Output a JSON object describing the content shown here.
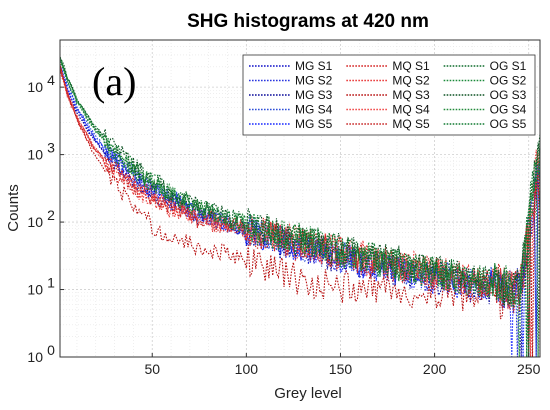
{
  "chart_data": {
    "type": "line",
    "title": "SHG histograms at 420 nm",
    "panel_label": "(a)",
    "xlabel": "Grey level",
    "ylabel": "Counts",
    "xlim": [
      1,
      256
    ],
    "ylim": [
      1,
      50000
    ],
    "yscale": "log",
    "grid": true,
    "minor_grid": true,
    "legend_position": "top-right",
    "legend_columns": 3,
    "xticks": [
      50,
      100,
      150,
      200,
      250
    ],
    "xtick_labels": [
      "50",
      "100",
      "150",
      "200",
      "250"
    ],
    "yticks": [
      1,
      10,
      100,
      1000,
      10000
    ],
    "ytick_labels": [
      "10^0",
      "10^1",
      "10^2",
      "10^3",
      "10^4"
    ],
    "series": [
      {
        "name": "MG S1",
        "color": "#1010c8",
        "style": "dotted",
        "anchors": [
          [
            1,
            20000
          ],
          [
            5,
            9000
          ],
          [
            10,
            4500
          ],
          [
            15,
            2600
          ],
          [
            20,
            1600
          ],
          [
            30,
            800
          ],
          [
            40,
            450
          ],
          [
            50,
            290
          ],
          [
            60,
            200
          ],
          [
            75,
            130
          ],
          [
            100,
            75
          ],
          [
            125,
            45
          ],
          [
            150,
            30
          ],
          [
            175,
            20
          ],
          [
            200,
            15
          ],
          [
            225,
            11
          ],
          [
            245,
            10
          ],
          [
            255,
            400
          ]
        ]
      },
      {
        "name": "MG S2",
        "color": "#2a36e0",
        "style": "dotted",
        "anchors": [
          [
            1,
            22000
          ],
          [
            5,
            10000
          ],
          [
            10,
            5000
          ],
          [
            15,
            2800
          ],
          [
            20,
            1700
          ],
          [
            30,
            850
          ],
          [
            40,
            480
          ],
          [
            50,
            300
          ],
          [
            60,
            210
          ],
          [
            75,
            135
          ],
          [
            100,
            78
          ],
          [
            125,
            47
          ],
          [
            150,
            31
          ],
          [
            175,
            21
          ],
          [
            200,
            15
          ],
          [
            225,
            11
          ],
          [
            245,
            9
          ],
          [
            255,
            600
          ]
        ]
      },
      {
        "name": "MG S3",
        "color": "#0b0b9a",
        "style": "dotted",
        "anchors": [
          [
            1,
            18000
          ],
          [
            5,
            8500
          ],
          [
            10,
            4200
          ],
          [
            15,
            2400
          ],
          [
            20,
            1500
          ],
          [
            30,
            750
          ],
          [
            40,
            420
          ],
          [
            50,
            270
          ],
          [
            60,
            190
          ],
          [
            75,
            120
          ],
          [
            100,
            70
          ],
          [
            125,
            43
          ],
          [
            150,
            28
          ],
          [
            175,
            19
          ],
          [
            200,
            14
          ],
          [
            225,
            10
          ],
          [
            245,
            9
          ],
          [
            255,
            300
          ]
        ]
      },
      {
        "name": "MG S4",
        "color": "#3050d8",
        "style": "dotted",
        "anchors": [
          [
            1,
            25000
          ],
          [
            5,
            11000
          ],
          [
            10,
            5200
          ],
          [
            15,
            3000
          ],
          [
            20,
            1800
          ],
          [
            30,
            900
          ],
          [
            40,
            500
          ],
          [
            50,
            320
          ],
          [
            60,
            220
          ],
          [
            75,
            140
          ],
          [
            100,
            80
          ],
          [
            125,
            48
          ],
          [
            150,
            32
          ],
          [
            175,
            22
          ],
          [
            200,
            16
          ],
          [
            225,
            12
          ],
          [
            245,
            10
          ],
          [
            255,
            800
          ]
        ]
      },
      {
        "name": "MG S5",
        "color": "#1a2aff",
        "style": "dotted",
        "anchors": [
          [
            1,
            20000
          ],
          [
            5,
            9500
          ],
          [
            10,
            4700
          ],
          [
            15,
            2700
          ],
          [
            20,
            1650
          ],
          [
            30,
            820
          ],
          [
            40,
            460
          ],
          [
            50,
            290
          ],
          [
            60,
            205
          ],
          [
            75,
            132
          ],
          [
            100,
            76
          ],
          [
            125,
            46
          ],
          [
            150,
            30
          ],
          [
            175,
            20
          ],
          [
            200,
            14
          ],
          [
            225,
            10
          ],
          [
            245,
            9
          ],
          [
            255,
            500
          ]
        ]
      },
      {
        "name": "MQ S1",
        "color": "#d42020",
        "style": "dotted",
        "anchors": [
          [
            1,
            20000
          ],
          [
            5,
            8000
          ],
          [
            10,
            3500
          ],
          [
            15,
            2000
          ],
          [
            20,
            1200
          ],
          [
            30,
            600
          ],
          [
            40,
            350
          ],
          [
            50,
            230
          ],
          [
            60,
            170
          ],
          [
            75,
            120
          ],
          [
            100,
            80
          ],
          [
            125,
            50
          ],
          [
            150,
            35
          ],
          [
            175,
            25
          ],
          [
            200,
            18
          ],
          [
            225,
            13
          ],
          [
            245,
            10
          ],
          [
            255,
            700
          ]
        ]
      },
      {
        "name": "MQ S2",
        "color": "#e83838",
        "style": "dotted",
        "anchors": [
          [
            1,
            18000
          ],
          [
            5,
            7500
          ],
          [
            10,
            3200
          ],
          [
            15,
            1800
          ],
          [
            20,
            1100
          ],
          [
            30,
            550
          ],
          [
            40,
            320
          ],
          [
            50,
            210
          ],
          [
            60,
            155
          ],
          [
            75,
            110
          ],
          [
            100,
            72
          ],
          [
            125,
            46
          ],
          [
            150,
            32
          ],
          [
            175,
            23
          ],
          [
            200,
            17
          ],
          [
            225,
            12
          ],
          [
            245,
            9
          ],
          [
            255,
            400
          ]
        ]
      },
      {
        "name": "MQ S3",
        "color": "#b81010",
        "style": "dotted",
        "anchors": [
          [
            1,
            22000
          ],
          [
            5,
            8200
          ],
          [
            10,
            3300
          ],
          [
            15,
            1700
          ],
          [
            20,
            900
          ],
          [
            30,
            400
          ],
          [
            40,
            170
          ],
          [
            50,
            90
          ],
          [
            60,
            60
          ],
          [
            75,
            42
          ],
          [
            100,
            28
          ],
          [
            110,
            22
          ],
          [
            125,
            15
          ],
          [
            140,
            12
          ],
          [
            150,
            11
          ],
          [
            175,
            10
          ],
          [
            200,
            9
          ],
          [
            225,
            8
          ],
          [
            245,
            7
          ],
          [
            255,
            300
          ]
        ]
      },
      {
        "name": "MQ S4",
        "color": "#f04848",
        "style": "dotted",
        "anchors": [
          [
            1,
            21000
          ],
          [
            5,
            8300
          ],
          [
            10,
            3600
          ],
          [
            15,
            2100
          ],
          [
            20,
            1250
          ],
          [
            30,
            620
          ],
          [
            40,
            360
          ],
          [
            50,
            240
          ],
          [
            60,
            175
          ],
          [
            75,
            122
          ],
          [
            100,
            82
          ],
          [
            125,
            52
          ],
          [
            150,
            36
          ],
          [
            175,
            26
          ],
          [
            200,
            18
          ],
          [
            225,
            13
          ],
          [
            245,
            10
          ],
          [
            255,
            900
          ]
        ]
      },
      {
        "name": "MQ S5",
        "color": "#c82828",
        "style": "dotted",
        "anchors": [
          [
            1,
            19000
          ],
          [
            5,
            7800
          ],
          [
            10,
            3400
          ],
          [
            15,
            1900
          ],
          [
            20,
            1150
          ],
          [
            30,
            580
          ],
          [
            40,
            340
          ],
          [
            50,
            220
          ],
          [
            60,
            160
          ],
          [
            75,
            115
          ],
          [
            100,
            76
          ],
          [
            125,
            48
          ],
          [
            150,
            33
          ],
          [
            175,
            24
          ],
          [
            200,
            17
          ],
          [
            225,
            12
          ],
          [
            245,
            9
          ],
          [
            255,
            500
          ]
        ]
      },
      {
        "name": "OG S1",
        "color": "#0d6b2a",
        "style": "dotted",
        "anchors": [
          [
            1,
            28000
          ],
          [
            5,
            13000
          ],
          [
            10,
            6500
          ],
          [
            15,
            3800
          ],
          [
            20,
            2400
          ],
          [
            30,
            1200
          ],
          [
            40,
            650
          ],
          [
            50,
            400
          ],
          [
            60,
            270
          ],
          [
            75,
            165
          ],
          [
            100,
            95
          ],
          [
            125,
            58
          ],
          [
            150,
            38
          ],
          [
            175,
            26
          ],
          [
            200,
            18
          ],
          [
            225,
            13
          ],
          [
            245,
            11
          ],
          [
            255,
            1200
          ]
        ]
      },
      {
        "name": "OG S2",
        "color": "#1a8a3a",
        "style": "dotted",
        "anchors": [
          [
            1,
            26000
          ],
          [
            5,
            12000
          ],
          [
            10,
            6000
          ],
          [
            15,
            3500
          ],
          [
            20,
            2200
          ],
          [
            30,
            1100
          ],
          [
            40,
            600
          ],
          [
            50,
            370
          ],
          [
            60,
            250
          ],
          [
            75,
            155
          ],
          [
            100,
            88
          ],
          [
            125,
            54
          ],
          [
            150,
            36
          ],
          [
            175,
            24
          ],
          [
            200,
            17
          ],
          [
            225,
            12
          ],
          [
            245,
            10
          ],
          [
            255,
            900
          ]
        ]
      },
      {
        "name": "OG S3",
        "color": "#0a5020",
        "style": "dotted",
        "anchors": [
          [
            1,
            30000
          ],
          [
            5,
            14000
          ],
          [
            10,
            7000
          ],
          [
            15,
            4000
          ],
          [
            20,
            2500
          ],
          [
            30,
            1250
          ],
          [
            40,
            680
          ],
          [
            50,
            420
          ],
          [
            60,
            280
          ],
          [
            75,
            170
          ],
          [
            100,
            97
          ],
          [
            125,
            60
          ],
          [
            150,
            40
          ],
          [
            175,
            27
          ],
          [
            200,
            19
          ],
          [
            225,
            13
          ],
          [
            245,
            11
          ],
          [
            255,
            1400
          ]
        ]
      },
      {
        "name": "OG S4",
        "color": "#228b3b",
        "style": "dotted",
        "anchors": [
          [
            1,
            27000
          ],
          [
            5,
            12500
          ],
          [
            10,
            6200
          ],
          [
            15,
            3600
          ],
          [
            20,
            2300
          ],
          [
            30,
            1150
          ],
          [
            40,
            620
          ],
          [
            50,
            380
          ],
          [
            60,
            260
          ],
          [
            75,
            160
          ],
          [
            100,
            90
          ],
          [
            125,
            55
          ],
          [
            150,
            37
          ],
          [
            175,
            25
          ],
          [
            200,
            17
          ],
          [
            225,
            12
          ],
          [
            245,
            10
          ],
          [
            255,
            1000
          ]
        ]
      },
      {
        "name": "OG S5",
        "color": "#0f7a30",
        "style": "dotted",
        "anchors": [
          [
            1,
            29000
          ],
          [
            5,
            13500
          ],
          [
            10,
            6800
          ],
          [
            15,
            3900
          ],
          [
            20,
            2450
          ],
          [
            30,
            1220
          ],
          [
            40,
            660
          ],
          [
            50,
            410
          ],
          [
            60,
            275
          ],
          [
            75,
            168
          ],
          [
            100,
            96
          ],
          [
            125,
            59
          ],
          [
            150,
            39
          ],
          [
            175,
            26
          ],
          [
            200,
            18
          ],
          [
            225,
            13
          ],
          [
            245,
            11
          ],
          [
            255,
            1300
          ]
        ]
      }
    ]
  }
}
